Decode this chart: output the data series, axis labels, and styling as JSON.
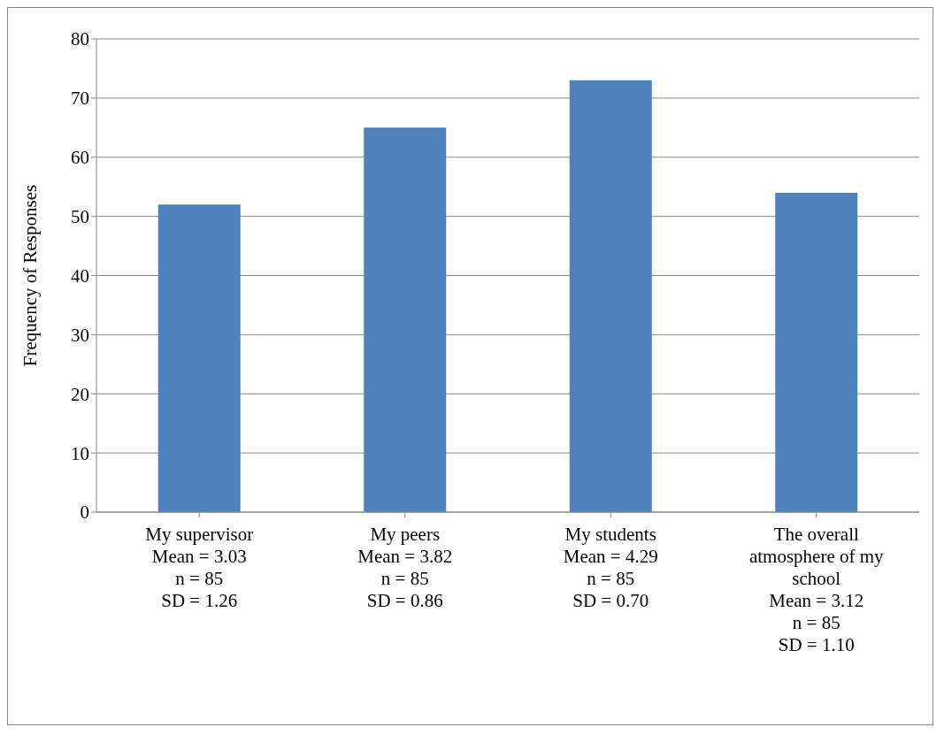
{
  "chart_data": {
    "type": "bar",
    "ylabel": "Frequency of Responses",
    "categories": [
      "My supervisor\nMean = 3.03\nn = 85\nSD = 1.26",
      "My peers\nMean = 3.82\nn = 85\nSD = 0.86",
      "My students\nMean = 4.29\nn = 85\nSD = 0.70",
      "The overall\natmosphere of my\nschool\nMean = 3.12\nn = 85\nSD = 1.10"
    ],
    "values": [
      52,
      65,
      73,
      54
    ],
    "color": "#4f81bd",
    "ylim": [
      0,
      80
    ],
    "yticks": [
      0,
      10,
      20,
      30,
      40,
      50,
      60,
      70,
      80
    ],
    "grid": "y"
  }
}
